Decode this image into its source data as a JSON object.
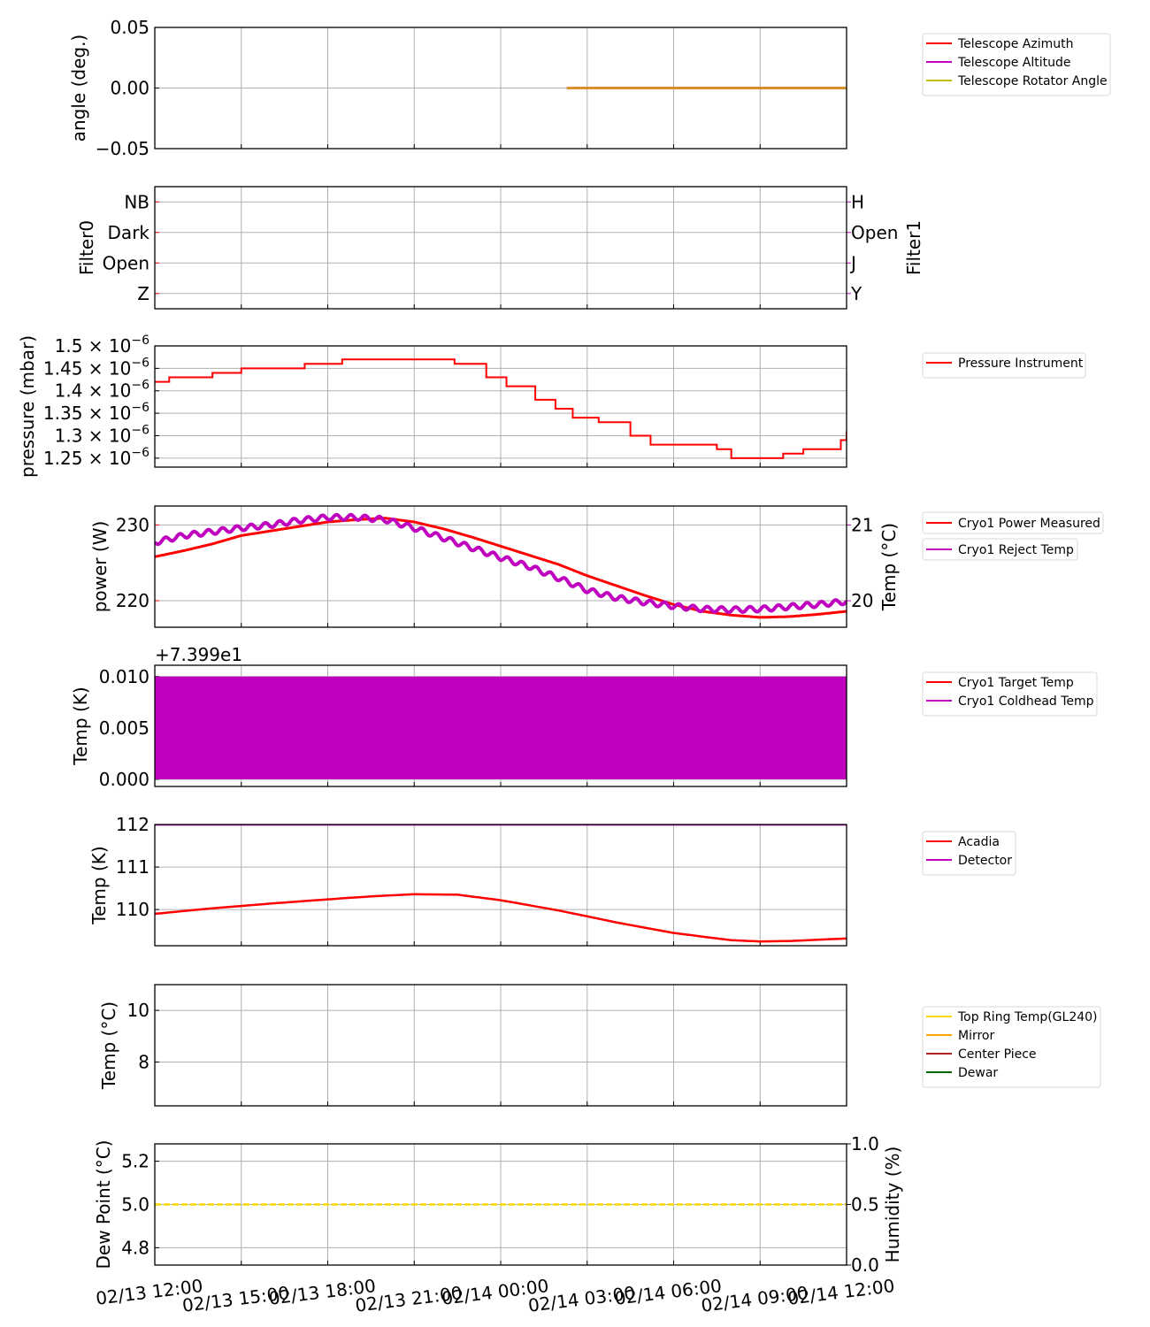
{
  "x_axis": {
    "start": "02/13 12:00",
    "end": "02/14 12:00",
    "tick_hours": [
      0,
      3,
      6,
      9,
      12,
      15,
      18,
      21,
      24
    ],
    "tick_labels": [
      "02/13 12:00",
      "02/13 15:00",
      "02/13 18:00",
      "02/13 21:00",
      "02/14 00:00",
      "02/14 03:00",
      "02/14 06:00",
      "02/14 09:00",
      "02/14 12:00"
    ]
  },
  "chart_data": [
    {
      "id": "angles",
      "type": "line",
      "ylabel": "angle (deg.)",
      "ylim": [
        -0.05,
        0.05
      ],
      "yticks": [
        0.05,
        0.0,
        -0.05
      ],
      "ytick_labels": [
        "0.05",
        "0.00",
        "−0.05"
      ],
      "grid": true,
      "legend_position": "right",
      "series": [
        {
          "name": "Telescope Azimuth",
          "color": "#ff0000",
          "x": [
            14.3,
            24
          ],
          "y": [
            0,
            0
          ]
        },
        {
          "name": "Telescope Altitude",
          "color": "#bf00bf",
          "x": [
            14.3,
            24
          ],
          "y": [
            0,
            0
          ]
        },
        {
          "name": "Telescope Rotator Angle",
          "color": "#bfbf00",
          "x": [
            14.3,
            24
          ],
          "y": [
            0,
            0
          ],
          "draw_color": "#d4a017"
        }
      ]
    },
    {
      "id": "filters",
      "type": "line",
      "ylabel": "Filter0",
      "ylabel_color": "#ff0000",
      "ylabel_right": "Filter1",
      "ylabel_right_color": "#bf00bf",
      "ylim": [
        -0.5,
        3.5
      ],
      "yticks": [
        3,
        2,
        1,
        0
      ],
      "ytick_labels": [
        "NB",
        "Dark",
        "Open",
        "Z"
      ],
      "ytick_labels_right": [
        "H",
        "Open",
        "J",
        "Y"
      ],
      "grid": true,
      "series": []
    },
    {
      "id": "pressure",
      "type": "line",
      "ylabel": "pressure (mbar)",
      "ylim": [
        1.23e-06,
        1.5e-06
      ],
      "yticks": [
        1.5e-06,
        1.45e-06,
        1.4e-06,
        1.35e-06,
        1.3e-06,
        1.25e-06
      ],
      "ytick_mantissas": [
        "1.5",
        "1.45",
        "1.4",
        "1.35",
        "1.3",
        "1.25"
      ],
      "ytick_times": "× 10",
      "ytick_exponent": "−6",
      "grid": true,
      "legend_position": "right",
      "series": [
        {
          "name": "Pressure Instrument",
          "color": "#ff0000",
          "step_x": [
            0,
            0.5,
            2.0,
            3.0,
            5.2,
            6.5,
            9.0,
            10.4,
            11.5,
            12.2,
            13.2,
            13.9,
            14.5,
            15.4,
            16.5,
            17.2,
            19.5,
            20.0,
            20.8,
            21.8,
            22.5,
            23.8,
            24
          ],
          "step_y": [
            1.42e-06,
            1.43e-06,
            1.44e-06,
            1.45e-06,
            1.46e-06,
            1.47e-06,
            1.47e-06,
            1.46e-06,
            1.43e-06,
            1.41e-06,
            1.38e-06,
            1.36e-06,
            1.34e-06,
            1.33e-06,
            1.3e-06,
            1.28e-06,
            1.27e-06,
            1.25e-06,
            1.25e-06,
            1.26e-06,
            1.27e-06,
            1.29e-06,
            1.31e-06
          ]
        }
      ]
    },
    {
      "id": "cryo-power",
      "type": "line",
      "ylabel": "power (W)",
      "ylabel_color": "#ff0000",
      "ylim": [
        216.5,
        232.5
      ],
      "yticks": [
        230,
        220
      ],
      "ytick_labels": [
        "230",
        "220"
      ],
      "ylabel_right": "Temp (°C)",
      "ylabel_right_color": "#bf00bf",
      "ylim_right": [
        19.65,
        21.25
      ],
      "yticks_right": [
        21,
        20
      ],
      "ytick_labels_right": [
        "21",
        "20"
      ],
      "grid": true,
      "legend_position": "right",
      "series": [
        {
          "name": "Cryo1 Power Measured",
          "color": "#ff0000",
          "axis": "left",
          "x": [
            0,
            1,
            2,
            3,
            4,
            5,
            6,
            7,
            8,
            9,
            10,
            11,
            12,
            13,
            14,
            15,
            16,
            17,
            18,
            19,
            20,
            21,
            22,
            23,
            24
          ],
          "y": [
            225.8,
            226.6,
            227.5,
            228.6,
            229.2,
            229.8,
            230.4,
            230.7,
            230.9,
            230.4,
            229.5,
            228.4,
            227.2,
            226.0,
            224.8,
            223.3,
            222.0,
            220.7,
            219.5,
            218.6,
            218.1,
            217.8,
            217.9,
            218.2,
            218.6
          ]
        },
        {
          "name": "Cryo1 Reject Temp",
          "color": "#bf00bf",
          "axis": "right",
          "x": [
            0,
            1,
            2,
            3,
            4,
            5,
            6,
            7,
            8,
            9,
            10,
            11,
            12,
            13,
            14,
            15,
            16,
            17,
            18,
            19,
            20,
            21,
            22,
            23,
            24
          ],
          "y": [
            20.77,
            20.86,
            20.91,
            20.96,
            21.0,
            21.06,
            21.1,
            21.1,
            21.07,
            20.96,
            20.83,
            20.7,
            20.57,
            20.45,
            20.3,
            20.14,
            20.04,
            19.98,
            19.93,
            19.89,
            19.88,
            19.89,
            19.92,
            19.95,
            19.99
          ]
        }
      ]
    },
    {
      "id": "cryo-temp",
      "type": "line",
      "ylabel": "Temp (K)",
      "offset_text": "+7.399e1",
      "ylim": [
        -0.0007,
        0.0111
      ],
      "yticks": [
        0.01,
        0.005,
        0.0
      ],
      "ytick_labels": [
        "0.010",
        "0.005",
        "0.000"
      ],
      "grid": true,
      "legend_position": "right",
      "series": [
        {
          "name": "Cryo1 Target Temp",
          "color": "#ff0000"
        },
        {
          "name": "Cryo1 Coldhead Temp",
          "color": "#bf00bf",
          "band_min": 0.0,
          "band_max": 0.01
        }
      ]
    },
    {
      "id": "acadia-detector",
      "type": "line",
      "ylabel": "Temp (K)",
      "ylim": [
        109.15,
        112.0
      ],
      "yticks": [
        112,
        111,
        110
      ],
      "ytick_labels": [
        "112",
        "111",
        "110"
      ],
      "grid": true,
      "legend_position": "right",
      "series": [
        {
          "name": "Acadia",
          "color": "#ff0000",
          "x": [
            0,
            2,
            4,
            6,
            7.5,
            9,
            10.5,
            12,
            14,
            16,
            18,
            20,
            21,
            22,
            24
          ],
          "y": [
            109.9,
            110.03,
            110.14,
            110.24,
            110.31,
            110.36,
            110.35,
            110.22,
            109.98,
            109.7,
            109.45,
            109.28,
            109.25,
            109.26,
            109.32
          ]
        },
        {
          "name": "Detector",
          "color": "#bf00bf",
          "x": [
            0,
            24
          ],
          "y": [
            112.0,
            112.0
          ]
        }
      ]
    },
    {
      "id": "telescope-temps",
      "type": "line",
      "ylabel": "Temp (°C)",
      "ylim": [
        6.3,
        11.0
      ],
      "yticks": [
        10,
        8
      ],
      "ytick_labels": [
        "10",
        "8"
      ],
      "grid": true,
      "legend_position": "right",
      "series": [
        {
          "name": "Top Ring Temp(GL240)",
          "color": "#ffd700"
        },
        {
          "name": "Mirror",
          "color": "#ffa500"
        },
        {
          "name": "Center Piece",
          "color": "#b22222"
        },
        {
          "name": "Dewar",
          "color": "#006400"
        }
      ]
    },
    {
      "id": "dew-humidity",
      "type": "line",
      "ylabel": "Dew Point (°C)",
      "ylim": [
        4.72,
        5.28
      ],
      "yticks": [
        5.2,
        5.0,
        4.8
      ],
      "ytick_labels": [
        "5.2",
        "5.0",
        "4.8"
      ],
      "ylabel_right": "Humidity (%)",
      "ylim_right": [
        0.0,
        1.0
      ],
      "yticks_right": [
        1.0,
        0.5,
        0.0
      ],
      "ytick_labels_right": [
        "1.0",
        "0.5",
        "0.0"
      ],
      "grid": true,
      "series": [
        {
          "name": "Dew Point",
          "color": "#ffd700",
          "dashed": true,
          "x": [
            0,
            24
          ],
          "y": [
            5.0,
            5.0
          ]
        }
      ]
    }
  ]
}
